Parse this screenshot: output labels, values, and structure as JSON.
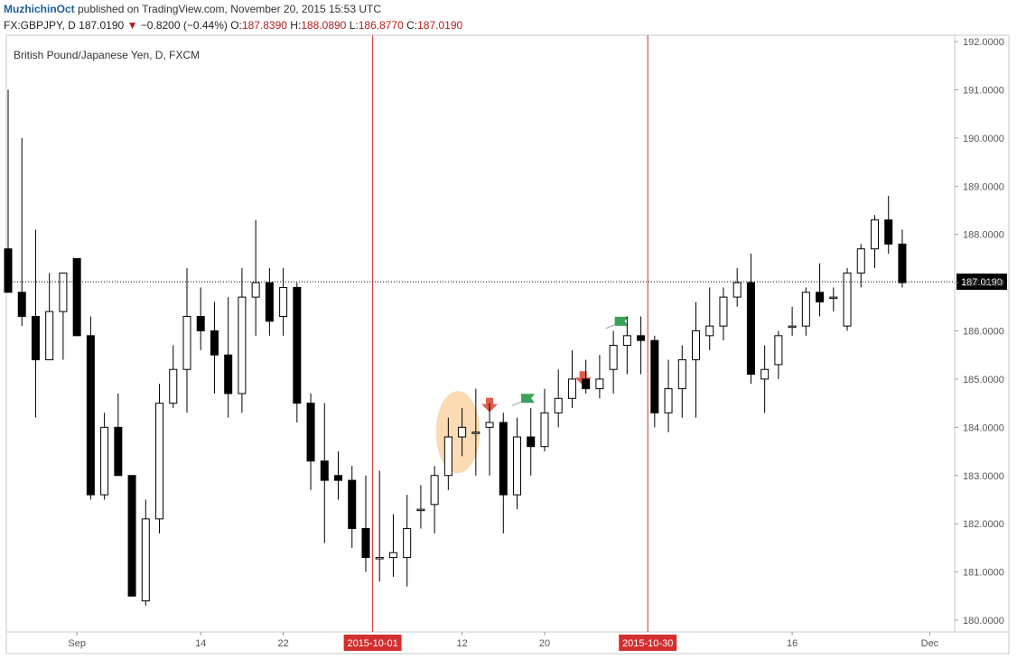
{
  "header": {
    "author": "MuzhichinOct",
    "published_text": " published on TradingView.com, November 20, 2015 15:53 UTC",
    "symbol": "FX:GBPJPY, D",
    "last": "187.0190",
    "change_arrow": "▼",
    "change": "−0.8200 (−0.44%)",
    "open_label": "O:",
    "open": "187.8390",
    "high_label": "H:",
    "high": "188.0890",
    "low_label": "L:",
    "low": "186.8770",
    "close_label": "C:",
    "close": "187.0190"
  },
  "chart_data": {
    "type": "candlestick",
    "title": "British Pound/Japanese Yen, D, FXCM",
    "ylim": [
      179.75,
      192.2
    ],
    "y_ticks": [
      "180.0000",
      "181.0000",
      "182.0000",
      "183.0000",
      "184.0000",
      "185.0000",
      "186.0000",
      "187.0000",
      "188.0000",
      "189.0000",
      "190.0000",
      "191.0000",
      "192.0000"
    ],
    "x_ticks": [
      {
        "label": "Sep",
        "index": 5
      },
      {
        "label": "14",
        "index": 14
      },
      {
        "label": "22",
        "index": 20
      },
      {
        "label": "12",
        "index": 33
      },
      {
        "label": "20",
        "index": 39
      },
      {
        "label": "16",
        "index": 57
      },
      {
        "label": "Dec",
        "index": 67
      }
    ],
    "marker_lines": [
      {
        "label": "2015-10-01",
        "index": 26.5
      },
      {
        "label": "2015-10-30",
        "index": 46.5
      }
    ],
    "price_line": {
      "label": "187.0190",
      "value": 187.019
    },
    "candles": [
      {
        "o": 187.7,
        "h": 191.0,
        "l": 186.8,
        "c": 186.8
      },
      {
        "o": 186.8,
        "h": 190.0,
        "l": 186.1,
        "c": 186.3
      },
      {
        "o": 186.3,
        "h": 188.1,
        "l": 184.2,
        "c": 185.4
      },
      {
        "o": 185.4,
        "h": 187.2,
        "l": 185.4,
        "c": 186.4
      },
      {
        "o": 186.4,
        "h": 187.2,
        "l": 185.4,
        "c": 187.2
      },
      {
        "o": 187.5,
        "h": 187.5,
        "l": 185.9,
        "c": 185.9
      },
      {
        "o": 185.9,
        "h": 186.3,
        "l": 182.5,
        "c": 182.6
      },
      {
        "o": 182.6,
        "h": 184.3,
        "l": 182.5,
        "c": 184.0
      },
      {
        "o": 184.0,
        "h": 184.7,
        "l": 183.0,
        "c": 183.0
      },
      {
        "o": 183.0,
        "h": 183.0,
        "l": 180.5,
        "c": 180.5
      },
      {
        "o": 180.4,
        "h": 182.5,
        "l": 180.3,
        "c": 182.1
      },
      {
        "o": 182.1,
        "h": 184.9,
        "l": 181.8,
        "c": 184.5
      },
      {
        "o": 184.5,
        "h": 185.7,
        "l": 184.4,
        "c": 185.2
      },
      {
        "o": 185.2,
        "h": 187.3,
        "l": 184.3,
        "c": 186.3
      },
      {
        "o": 186.3,
        "h": 186.9,
        "l": 185.6,
        "c": 186.0
      },
      {
        "o": 186.0,
        "h": 186.6,
        "l": 184.7,
        "c": 185.5
      },
      {
        "o": 185.5,
        "h": 186.7,
        "l": 184.2,
        "c": 184.7
      },
      {
        "o": 184.7,
        "h": 187.3,
        "l": 184.3,
        "c": 186.7
      },
      {
        "o": 186.7,
        "h": 188.3,
        "l": 185.9,
        "c": 187.0
      },
      {
        "o": 187.0,
        "h": 187.3,
        "l": 185.9,
        "c": 186.2
      },
      {
        "o": 186.3,
        "h": 187.3,
        "l": 185.9,
        "c": 186.9
      },
      {
        "o": 186.9,
        "h": 187.0,
        "l": 184.1,
        "c": 184.5
      },
      {
        "o": 184.5,
        "h": 184.7,
        "l": 182.7,
        "c": 183.3
      },
      {
        "o": 183.3,
        "h": 184.5,
        "l": 181.6,
        "c": 182.9
      },
      {
        "o": 183.0,
        "h": 183.5,
        "l": 182.5,
        "c": 182.9
      },
      {
        "o": 182.9,
        "h": 183.2,
        "l": 181.5,
        "c": 181.9
      },
      {
        "o": 181.9,
        "h": 183.0,
        "l": 181.0,
        "c": 181.3
      },
      {
        "o": 181.3,
        "h": 183.1,
        "l": 180.8,
        "c": 181.3
      },
      {
        "o": 181.3,
        "h": 182.2,
        "l": 180.9,
        "c": 181.4
      },
      {
        "o": 181.3,
        "h": 182.6,
        "l": 180.7,
        "c": 181.9
      },
      {
        "o": 182.3,
        "h": 182.8,
        "l": 181.9,
        "c": 182.3
      },
      {
        "o": 182.4,
        "h": 183.2,
        "l": 181.8,
        "c": 183.0
      },
      {
        "o": 183.0,
        "h": 184.2,
        "l": 182.7,
        "c": 183.8
      },
      {
        "o": 183.8,
        "h": 184.4,
        "l": 183.4,
        "c": 184.0
      },
      {
        "o": 183.9,
        "h": 184.8,
        "l": 183.0,
        "c": 183.9
      },
      {
        "o": 184.0,
        "h": 184.5,
        "l": 183.0,
        "c": 184.1
      },
      {
        "o": 184.1,
        "h": 184.3,
        "l": 181.8,
        "c": 182.6
      },
      {
        "o": 182.6,
        "h": 184.2,
        "l": 182.3,
        "c": 183.8
      },
      {
        "o": 183.8,
        "h": 184.4,
        "l": 183.0,
        "c": 183.6
      },
      {
        "o": 183.6,
        "h": 184.8,
        "l": 183.5,
        "c": 184.3
      },
      {
        "o": 184.3,
        "h": 185.2,
        "l": 184.0,
        "c": 184.6
      },
      {
        "o": 184.6,
        "h": 185.6,
        "l": 184.4,
        "c": 185.0
      },
      {
        "o": 185.0,
        "h": 185.4,
        "l": 184.7,
        "c": 184.8
      },
      {
        "o": 184.8,
        "h": 185.5,
        "l": 184.6,
        "c": 185.0
      },
      {
        "o": 185.2,
        "h": 186.0,
        "l": 184.7,
        "c": 185.7
      },
      {
        "o": 185.7,
        "h": 186.3,
        "l": 185.1,
        "c": 185.9
      },
      {
        "o": 185.9,
        "h": 186.3,
        "l": 185.1,
        "c": 185.8
      },
      {
        "o": 185.8,
        "h": 185.9,
        "l": 184.0,
        "c": 184.3
      },
      {
        "o": 184.3,
        "h": 185.4,
        "l": 183.9,
        "c": 184.8
      },
      {
        "o": 184.8,
        "h": 185.7,
        "l": 184.2,
        "c": 185.4
      },
      {
        "o": 185.4,
        "h": 186.6,
        "l": 184.2,
        "c": 186.0
      },
      {
        "o": 185.9,
        "h": 186.9,
        "l": 185.6,
        "c": 186.1
      },
      {
        "o": 186.1,
        "h": 186.9,
        "l": 185.8,
        "c": 186.7
      },
      {
        "o": 186.7,
        "h": 187.3,
        "l": 186.5,
        "c": 187.0
      },
      {
        "o": 187.0,
        "h": 187.6,
        "l": 184.9,
        "c": 185.1
      },
      {
        "o": 185.0,
        "h": 185.7,
        "l": 184.3,
        "c": 185.2
      },
      {
        "o": 185.3,
        "h": 186.0,
        "l": 185.0,
        "c": 185.9
      },
      {
        "o": 186.1,
        "h": 186.5,
        "l": 185.9,
        "c": 186.1
      },
      {
        "o": 186.1,
        "h": 186.9,
        "l": 185.9,
        "c": 186.8
      },
      {
        "o": 186.8,
        "h": 187.4,
        "l": 186.3,
        "c": 186.6
      },
      {
        "o": 186.7,
        "h": 186.9,
        "l": 186.4,
        "c": 186.7
      },
      {
        "o": 186.1,
        "h": 187.3,
        "l": 186.0,
        "c": 187.2
      },
      {
        "o": 187.2,
        "h": 187.8,
        "l": 186.9,
        "c": 187.7
      },
      {
        "o": 187.7,
        "h": 188.4,
        "l": 187.3,
        "c": 188.3
      },
      {
        "o": 188.3,
        "h": 188.8,
        "l": 187.6,
        "c": 187.8
      },
      {
        "o": 187.8,
        "h": 188.1,
        "l": 186.9,
        "c": 187.0
      }
    ],
    "annotations": {
      "ellipse": {
        "index_center": 32.7,
        "y_center": 183.9,
        "index_radius": 1.6,
        "y_radius": 0.85,
        "color": "#f8cf9a"
      },
      "arrows": [
        {
          "index": 35,
          "value": 184.35,
          "color": "#e35b4a"
        },
        {
          "index": 41.8,
          "value": 184.9,
          "color": "#e35b4a"
        }
      ],
      "flags": [
        {
          "index": 37.3,
          "value": 184.6,
          "color": "#3aa35a"
        },
        {
          "index": 44.1,
          "value": 186.2,
          "color": "#3aa35a"
        }
      ]
    },
    "colors": {
      "bear": "#000000",
      "bull": "#ffffff",
      "marker": "#d32f2f",
      "axis": "#555555"
    }
  }
}
